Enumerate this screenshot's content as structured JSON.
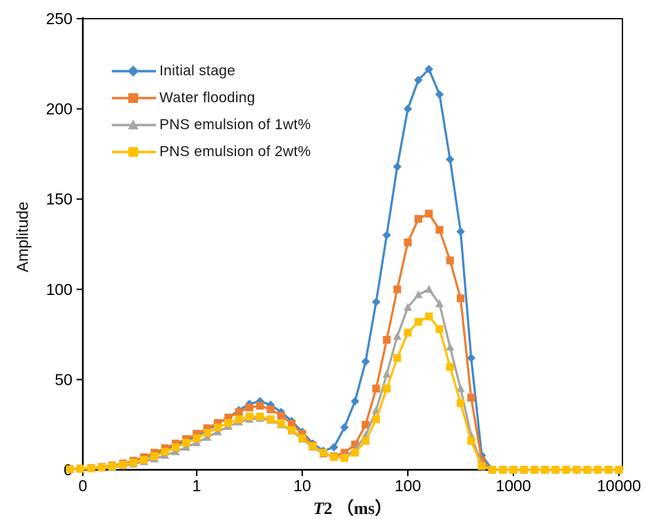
{
  "chart_data": {
    "type": "line",
    "title": "",
    "x_scale": "log",
    "ylabel": "Amplitude",
    "xlabel_main": "T",
    "xlabel_num": "2",
    "xlabel_unit": "（ms）",
    "xtick_labels": [
      "0",
      "1",
      "10",
      "100",
      "1000",
      "10000"
    ],
    "ytick_labels": [
      "0",
      "50",
      "100",
      "150",
      "200",
      "250"
    ],
    "ylim": [
      0,
      250
    ],
    "grid": false,
    "legend_position": "top-left-inside",
    "axis_color": "#000000",
    "background": "#ffffff",
    "x": [
      0.063,
      0.079,
      0.1,
      0.126,
      0.158,
      0.2,
      0.251,
      0.316,
      0.398,
      0.501,
      0.631,
      0.794,
      1.0,
      1.259,
      1.585,
      1.995,
      2.512,
      3.162,
      3.981,
      5.012,
      6.31,
      7.943,
      10,
      12.59,
      15.85,
      19.95,
      25.12,
      31.62,
      39.81,
      50.12,
      63.1,
      79.43,
      100,
      125.9,
      158.5,
      199.5,
      251.2,
      316.2,
      398.1,
      501.2,
      631,
      794.3,
      1000,
      1259,
      1585,
      1995,
      2512,
      3162,
      3981,
      5012,
      6310,
      7943,
      10000
    ],
    "series": [
      {
        "name": "Initial stage",
        "color": "#4189C9",
        "marker": "diamond",
        "values": [
          0.3,
          0.5,
          0.8,
          1.3,
          2,
          3,
          4.5,
          6,
          8.5,
          11,
          13.5,
          16,
          19,
          22,
          25.5,
          29,
          33,
          36.5,
          38,
          36,
          32,
          27,
          21,
          14.5,
          10.5,
          12.5,
          23.5,
          38,
          60,
          93,
          130,
          168,
          200,
          216,
          222,
          208,
          172,
          132,
          62,
          8,
          0,
          0,
          0,
          0,
          0,
          0,
          0,
          0,
          0,
          0,
          0,
          0,
          0
        ]
      },
      {
        "name": "Water flooding",
        "color": "#ED7D31",
        "marker": "square",
        "values": [
          0.4,
          0.7,
          1,
          1.6,
          2.4,
          3.5,
          5,
          7,
          9.5,
          12,
          14.5,
          17,
          20,
          23,
          26,
          29,
          32,
          34.5,
          35.5,
          33.5,
          30,
          25.5,
          20,
          13.5,
          9,
          7.5,
          9.5,
          14,
          25,
          45,
          72,
          100,
          126,
          139,
          142,
          133,
          116,
          95,
          40,
          5,
          0,
          0,
          0,
          0,
          0,
          0,
          0,
          0,
          0,
          0,
          0,
          0,
          0
        ]
      },
      {
        "name": "PNS emulsion of 1wt%",
        "color": "#A6A6A6",
        "marker": "triangle",
        "values": [
          0.2,
          0.4,
          0.6,
          1,
          1.5,
          2.2,
          3.2,
          4.5,
          6,
          8,
          10,
          12.5,
          15,
          18,
          21,
          24,
          26.5,
          28,
          28.5,
          27.5,
          25,
          21.5,
          17,
          12.5,
          9,
          7,
          7.5,
          11,
          19,
          33,
          53,
          74,
          90,
          97,
          100,
          92,
          68,
          45,
          19,
          3,
          0,
          0,
          0,
          0,
          0,
          0,
          0,
          0,
          0,
          0,
          0,
          0,
          0
        ]
      },
      {
        "name": "PNS emulsion of 2wt%",
        "color": "#FFC000",
        "marker": "square",
        "values": [
          0.3,
          0.5,
          0.8,
          1.3,
          2,
          2.8,
          4,
          5.5,
          7.5,
          10,
          12.5,
          15,
          17.5,
          20.5,
          23.5,
          26,
          28,
          29.5,
          29.5,
          28,
          25.5,
          22,
          17.5,
          13,
          9.5,
          7,
          6.5,
          9.5,
          16,
          28,
          45,
          62,
          76,
          82,
          85,
          78,
          57,
          37,
          16,
          2,
          0,
          0,
          0,
          0,
          0,
          0,
          0,
          0,
          0,
          0,
          0,
          0,
          0
        ]
      }
    ]
  }
}
